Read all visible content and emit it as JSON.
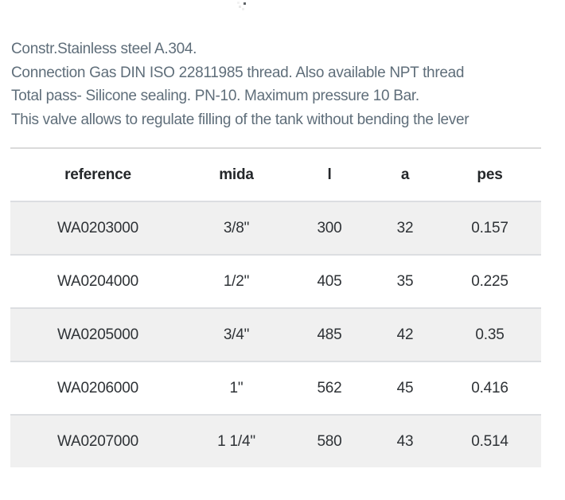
{
  "description": {
    "lines": [
      "Constr.Stainless steel A.304.",
      "Connection Gas DIN ISO 22811985 thread. Also available NPT thread",
      "Total pass- Silicone sealing. PN-10. Maximum pressure 10 Bar.",
      "This valve allows to regulate filling of the tank without bending the lever"
    ]
  },
  "table": {
    "columns": [
      "reference",
      "mida",
      "l",
      "a",
      "pes"
    ],
    "rows": [
      [
        "WA0203000",
        "3/8\"",
        "300",
        "32",
        "0.157"
      ],
      [
        "WA0204000",
        "1/2\"",
        "405",
        "35",
        "0.225"
      ],
      [
        "WA0205000",
        "3/4\"",
        "485",
        "42",
        "0.35"
      ],
      [
        "WA0206000",
        "1\"",
        "562",
        "45",
        "0.416"
      ],
      [
        "WA0207000",
        "1 1/4\"",
        "580",
        "43",
        "0.514"
      ]
    ]
  },
  "colors": {
    "description_text": "#5f6e7a",
    "table_text": "#2e3236",
    "header_text": "#24272a",
    "row_alt_background": "#f0f0f0",
    "row_border": "#dcdee1",
    "table_top_border": "#dadada"
  }
}
